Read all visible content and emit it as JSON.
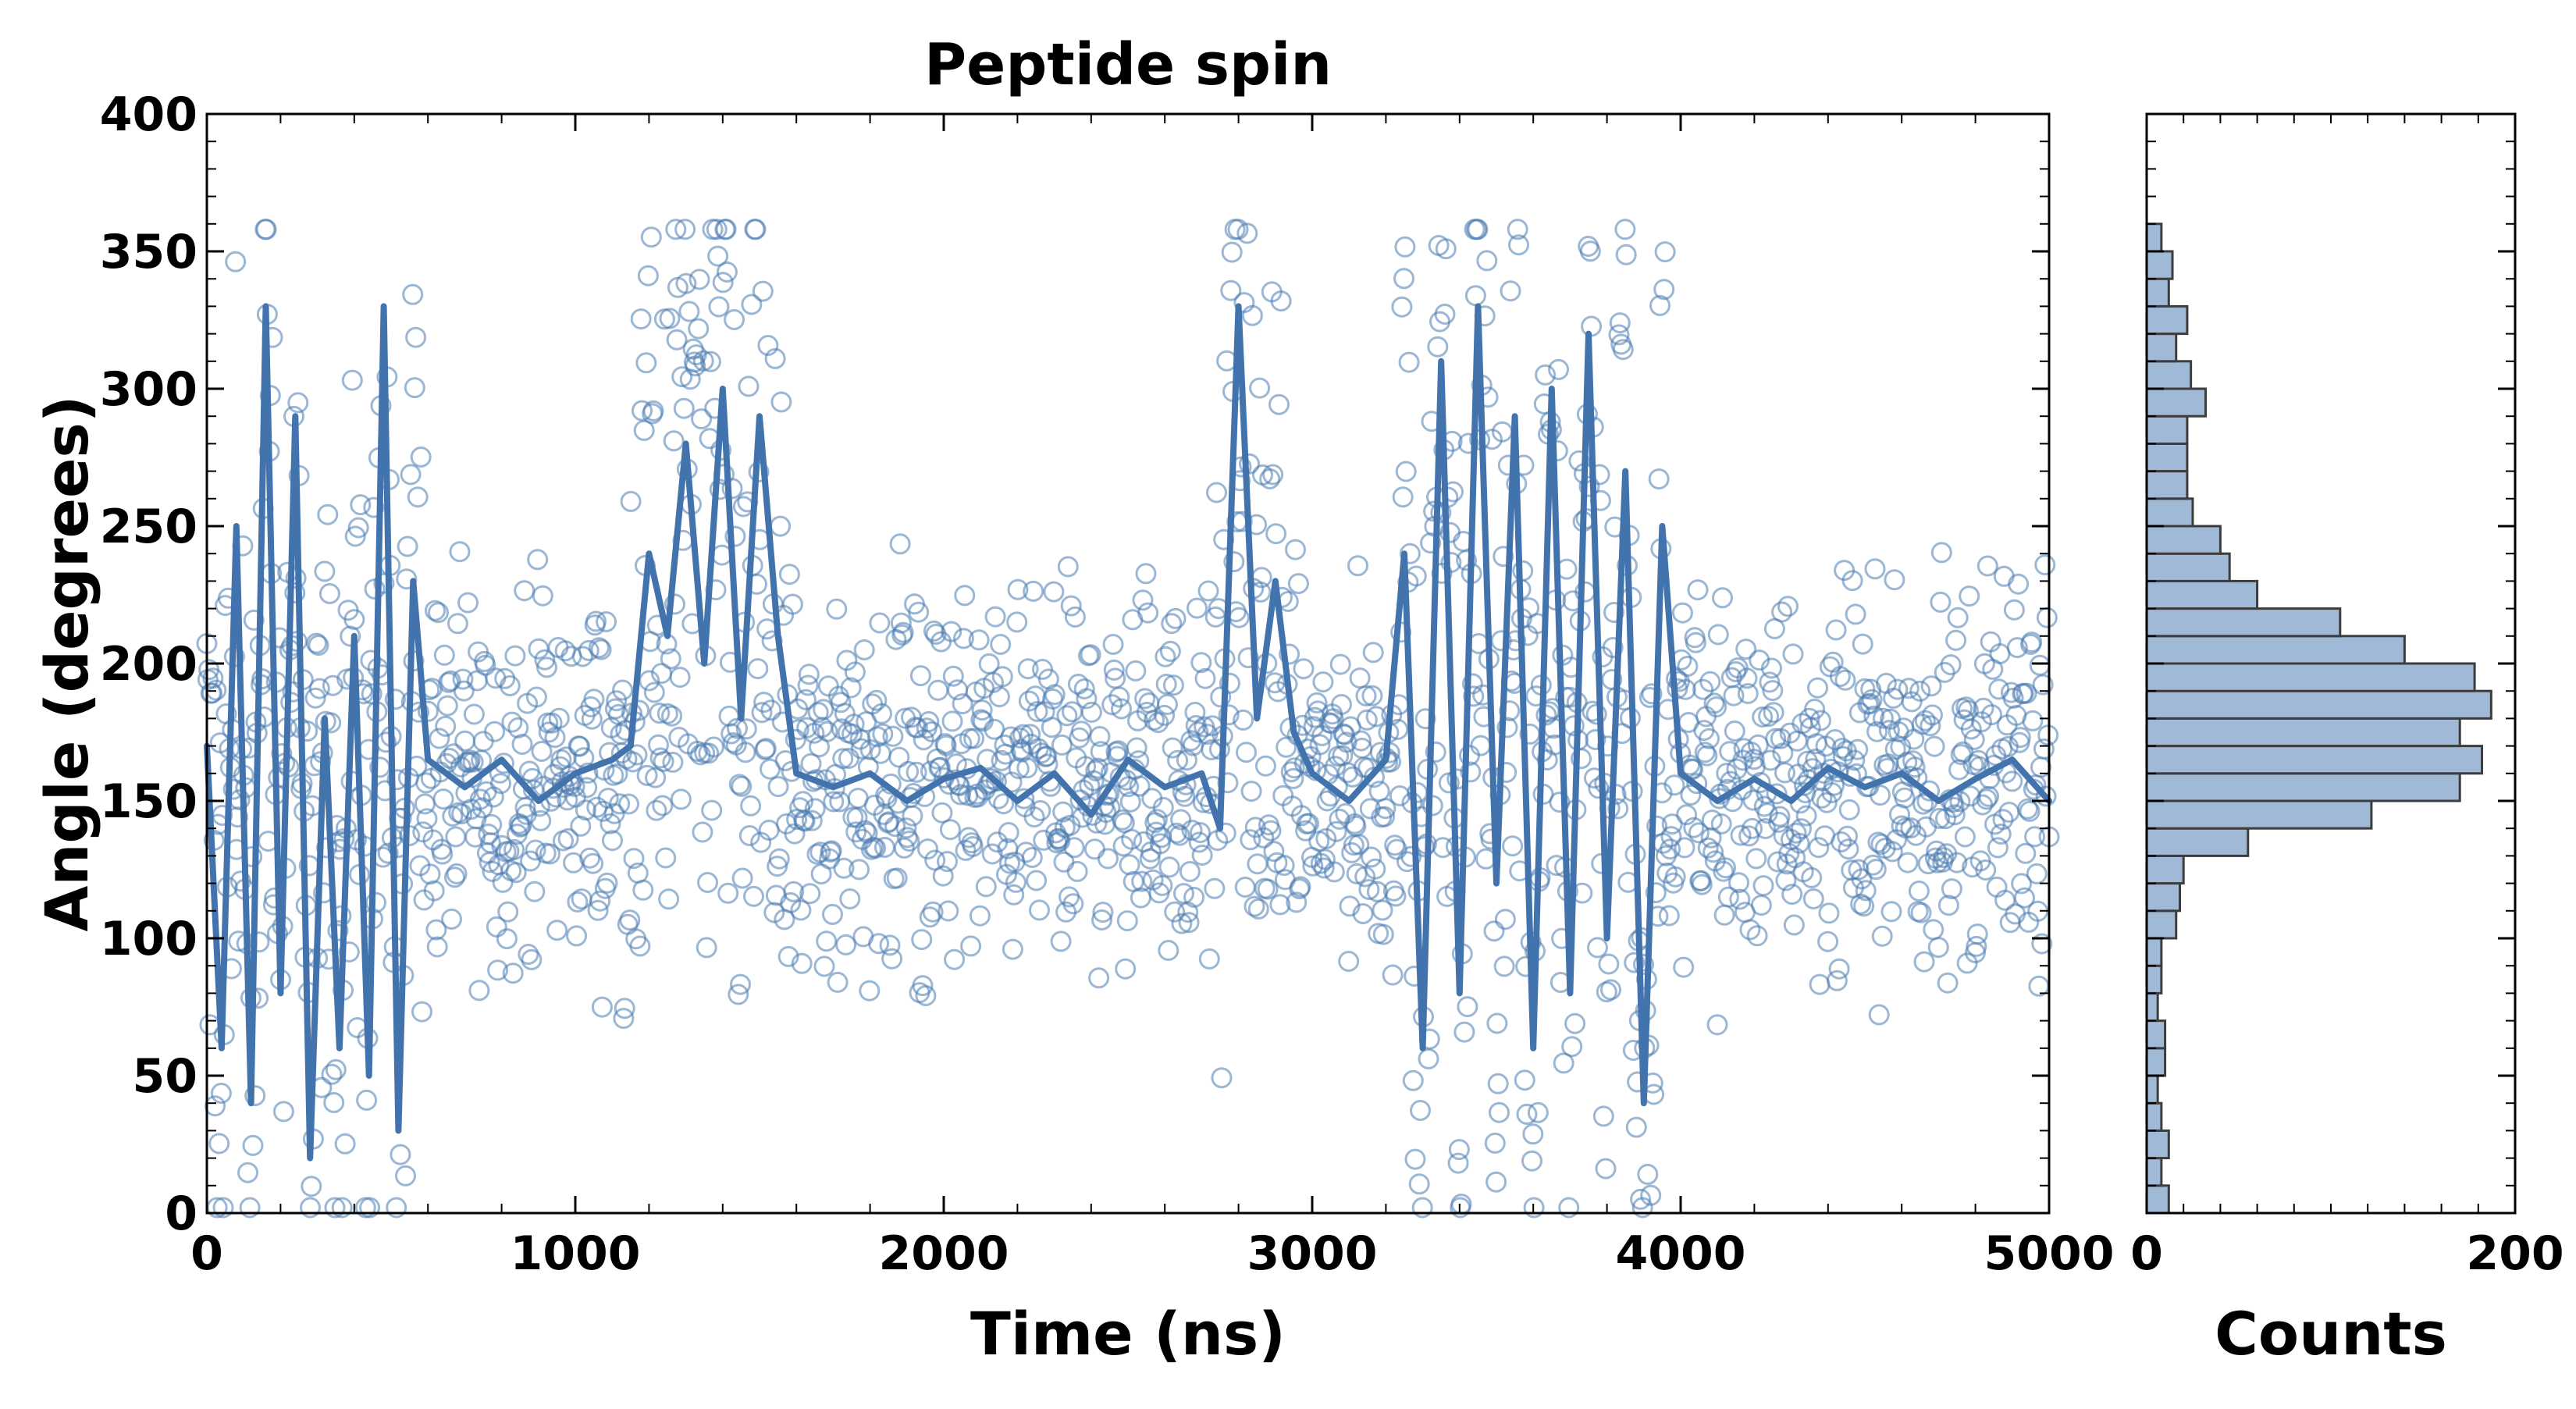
{
  "chart_data": [
    {
      "type": "scatter",
      "title": "Peptide spin",
      "xlabel": "Time (ns)",
      "ylabel": "Angle (degrees)",
      "xlim": [
        0,
        5000
      ],
      "ylim": [
        0,
        400
      ],
      "x_ticks": [
        0,
        1000,
        2000,
        3000,
        4000,
        5000
      ],
      "y_ticks": [
        0,
        50,
        100,
        150,
        200,
        250,
        300,
        350,
        400
      ],
      "x_tick_labels": [
        "0",
        "1000",
        "2000",
        "3000",
        "4000",
        "5000"
      ],
      "y_tick_labels": [
        "0",
        "50",
        "100",
        "150",
        "200",
        "250",
        "300",
        "350",
        "400"
      ],
      "grid": false,
      "series": [
        {
          "name": "samples",
          "style": "open-circle",
          "color": "#4a7bb0",
          "n_points": 1800,
          "description": "dense open-circle samples clustered around 130-185 degrees with excursions 0-360 during transitions"
        },
        {
          "name": "running-average",
          "style": "line",
          "color": "#4273ad",
          "x": [
            0,
            40,
            80,
            120,
            160,
            200,
            240,
            280,
            320,
            360,
            400,
            440,
            480,
            520,
            560,
            600,
            700,
            800,
            900,
            1000,
            1100,
            1150,
            1200,
            1250,
            1300,
            1350,
            1400,
            1450,
            1500,
            1550,
            1600,
            1700,
            1800,
            1900,
            2000,
            2100,
            2200,
            2300,
            2400,
            2500,
            2600,
            2700,
            2750,
            2800,
            2850,
            2900,
            2950,
            3000,
            3100,
            3200,
            3250,
            3300,
            3350,
            3400,
            3450,
            3500,
            3550,
            3600,
            3650,
            3700,
            3750,
            3800,
            3850,
            3900,
            3950,
            4000,
            4100,
            4200,
            4300,
            4400,
            4500,
            4600,
            4700,
            4800,
            4900,
            5000
          ],
          "y": [
            170,
            60,
            250,
            40,
            330,
            80,
            290,
            20,
            180,
            60,
            210,
            50,
            330,
            30,
            230,
            165,
            155,
            165,
            150,
            160,
            165,
            170,
            240,
            210,
            280,
            200,
            300,
            180,
            290,
            210,
            160,
            155,
            160,
            150,
            158,
            162,
            150,
            160,
            145,
            165,
            155,
            160,
            140,
            330,
            180,
            230,
            175,
            160,
            150,
            165,
            240,
            60,
            310,
            80,
            330,
            120,
            290,
            60,
            300,
            80,
            320,
            100,
            270,
            40,
            250,
            160,
            150,
            158,
            150,
            162,
            155,
            160,
            150,
            158,
            165,
            150
          ]
        }
      ]
    },
    {
      "type": "bar",
      "orientation": "horizontal",
      "title": "",
      "xlabel": "Counts",
      "ylabel": "",
      "xlim": [
        0,
        200
      ],
      "ylim": [
        0,
        400
      ],
      "x_ticks": [
        0,
        200
      ],
      "x_tick_labels": [
        "0",
        "200"
      ],
      "color": "#a0b9d6",
      "edge_color": "#3d3d3d",
      "bin_width": 10,
      "bin_starts": [
        0,
        10,
        20,
        30,
        40,
        50,
        60,
        70,
        80,
        90,
        100,
        110,
        120,
        130,
        140,
        150,
        160,
        170,
        180,
        190,
        200,
        210,
        220,
        230,
        240,
        250,
        260,
        270,
        280,
        290,
        300,
        310,
        320,
        330,
        340,
        350
      ],
      "values": [
        12,
        8,
        12,
        8,
        6,
        10,
        10,
        6,
        8,
        8,
        16,
        18,
        20,
        55,
        122,
        170,
        182,
        170,
        187,
        178,
        140,
        105,
        60,
        45,
        40,
        25,
        22,
        22,
        22,
        32,
        24,
        16,
        22,
        12,
        14,
        8
      ]
    }
  ]
}
